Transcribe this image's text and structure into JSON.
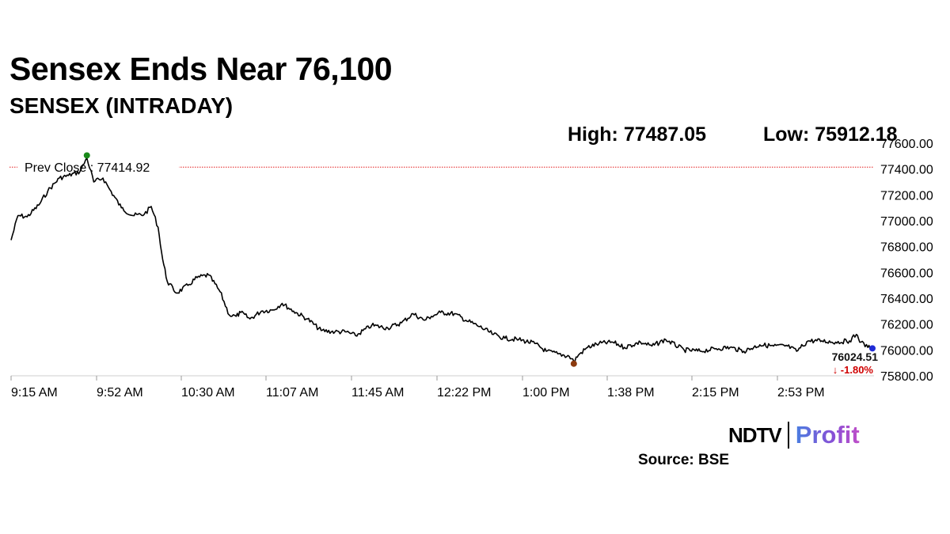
{
  "header": {
    "title": "Sensex Ends Near 76,100",
    "subtitle": "SENSEX (INTRADAY)"
  },
  "stats": {
    "high": "High: 77487.05",
    "low": "Low: 75912.18"
  },
  "prev_close": {
    "label": "Prev Close : 77414.92",
    "value": 77414.92
  },
  "last": {
    "value_text": "76024.51",
    "change_text": "↓ -1.80%"
  },
  "brand": {
    "ndtv": "NDTV",
    "profit": "Profit"
  },
  "source": "Source: BSE",
  "colors": {
    "line": "#000000",
    "prev_close_line": "#e41a1c",
    "high_marker": "#1a8a1a",
    "low_marker": "#8b3a0e",
    "last_marker": "#1f2bd6",
    "change_negative": "#d00000"
  },
  "chart_data": {
    "type": "line",
    "title": "SENSEX (INTRADAY)",
    "xlabel": "",
    "ylabel": "",
    "ylim": [
      75800,
      77600
    ],
    "y_ticks": [
      77600,
      77400,
      77200,
      77000,
      76800,
      76600,
      76400,
      76200,
      76000,
      75800
    ],
    "y_tick_labels": [
      "77600.00",
      "77400.00",
      "77200.00",
      "77000.00",
      "76800.00",
      "76600.00",
      "76400.00",
      "76200.00",
      "76000.00",
      "75800.00"
    ],
    "x_ticks": [
      "9:15 AM",
      "9:52 AM",
      "10:30 AM",
      "11:07 AM",
      "11:45 AM",
      "12:22 PM",
      "1:00 PM",
      "1:38 PM",
      "2:15 PM",
      "2:53 PM"
    ],
    "x_range": [
      "9:15 AM",
      "3:30 PM"
    ],
    "grid": false,
    "series": [
      {
        "name": "SENSEX",
        "x": [
          "9:15",
          "9:18",
          "9:22",
          "9:27",
          "9:31",
          "9:36",
          "9:40",
          "9:45",
          "9:48",
          "9:51",
          "9:55",
          "9:58",
          "10:03",
          "10:08",
          "10:13",
          "10:16",
          "10:19",
          "10:21",
          "10:23",
          "10:27",
          "10:32",
          "10:36",
          "10:41",
          "10:46",
          "10:50",
          "10:53",
          "10:55",
          "10:59",
          "11:04",
          "11:09",
          "11:13",
          "11:18",
          "11:24",
          "11:30",
          "11:36",
          "11:41",
          "11:45",
          "11:52",
          "11:59",
          "12:05",
          "12:10",
          "12:15",
          "12:18",
          "12:22",
          "12:28",
          "12:33",
          "12:39",
          "12:45",
          "12:50",
          "12:56",
          "13:03",
          "13:08",
          "13:13",
          "13:18",
          "13:20",
          "13:22",
          "13:26",
          "13:31",
          "13:37",
          "13:42",
          "13:49",
          "13:54",
          "14:00",
          "14:08",
          "14:15",
          "14:22",
          "14:28",
          "14:34",
          "14:41",
          "14:47",
          "14:53",
          "14:57",
          "15:02",
          "15:08",
          "15:14",
          "15:20",
          "15:23",
          "15:25",
          "15:28",
          "15:30"
        ],
        "values": [
          76850,
          77040,
          77030,
          77120,
          77230,
          77330,
          77350,
          77380,
          77487,
          77300,
          77330,
          77240,
          77100,
          77040,
          77050,
          77110,
          76950,
          76700,
          76530,
          76440,
          76500,
          76560,
          76580,
          76450,
          76270,
          76260,
          76290,
          76240,
          76300,
          76310,
          76360,
          76300,
          76240,
          76150,
          76140,
          76140,
          76110,
          76190,
          76170,
          76210,
          76280,
          76230,
          76260,
          76290,
          76280,
          76230,
          76180,
          76120,
          76090,
          76080,
          76050,
          75990,
          75970,
          75950,
          75912,
          75960,
          76020,
          76050,
          76060,
          76020,
          76060,
          76030,
          76080,
          76000,
          75990,
          76010,
          76020,
          75990,
          76040,
          76030,
          76030,
          75990,
          76070,
          76070,
          76060,
          76070,
          76120,
          76060,
          76020,
          76024.51
        ]
      }
    ],
    "reference_line": {
      "label": "Prev Close : 77414.92",
      "value": 77414.92
    },
    "annotations": [
      {
        "label": "76024.51",
        "x": "15:30"
      },
      {
        "label": "↓ -1.80%",
        "x": "15:30"
      }
    ]
  }
}
